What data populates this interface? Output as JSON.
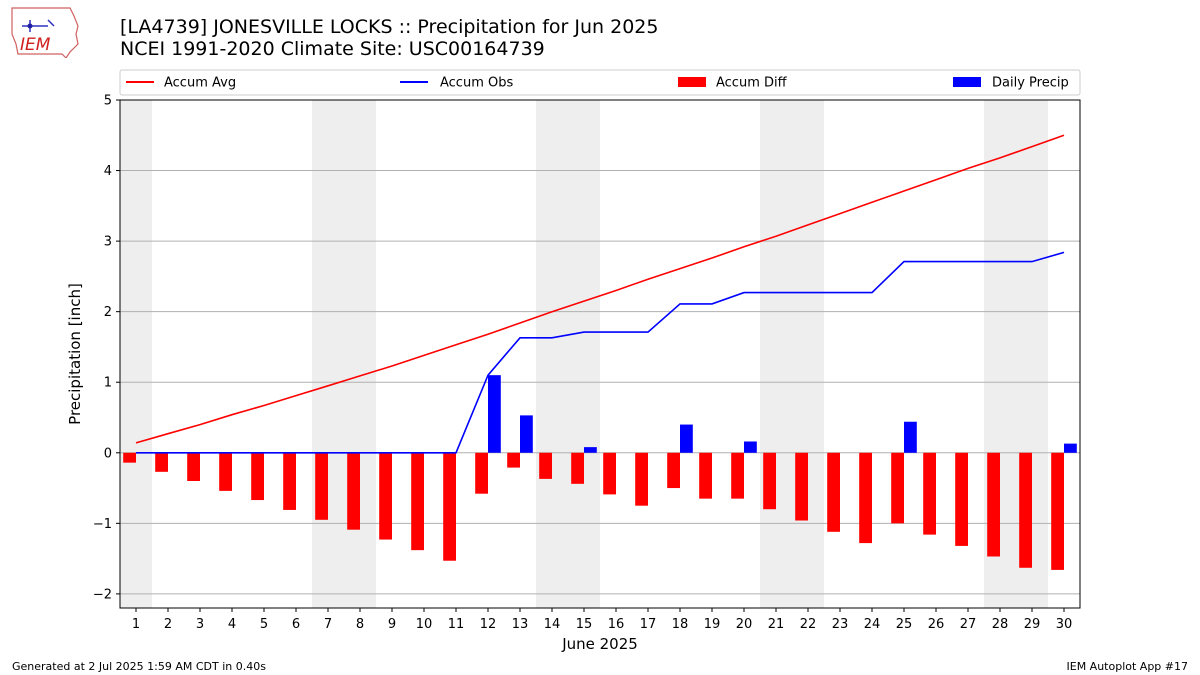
{
  "header": {
    "title_line1": "[LA4739] JONESVILLE LOCKS :: Precipitation for Jun 2025",
    "title_line2": "NCEI 1991-2020 Climate Site: USC00164739",
    "logo_text": "IEM"
  },
  "footer": {
    "left": "Generated at 2 Jul 2025 1:59 AM CDT in 0.40s",
    "right": "IEM Autoplot App #17"
  },
  "colors": {
    "avg": "#ff0000",
    "obs": "#0000ff",
    "diff": "#ff0000",
    "daily": "#0000ff",
    "weekend_shade": "#eeeeee",
    "grid": "#b0b0b0"
  },
  "chart_data": {
    "type": "bar",
    "xlabel": "June 2025",
    "ylabel": "Precipitation [inch]",
    "ylim": [
      -2.2,
      5
    ],
    "yticks": [
      -2,
      -1,
      0,
      1,
      2,
      3,
      4,
      5
    ],
    "ytick_labels": [
      "−2",
      "−1",
      "0",
      "1",
      "2",
      "3",
      "4",
      "5"
    ],
    "x": [
      1,
      2,
      3,
      4,
      5,
      6,
      7,
      8,
      9,
      10,
      11,
      12,
      13,
      14,
      15,
      16,
      17,
      18,
      19,
      20,
      21,
      22,
      23,
      24,
      25,
      26,
      27,
      28,
      29,
      30
    ],
    "grid": "horizontal",
    "legend_position": "top",
    "shaded_days": [
      [
        1,
        1
      ],
      [
        7,
        8
      ],
      [
        14,
        15
      ],
      [
        21,
        22
      ],
      [
        28,
        29
      ]
    ],
    "series": [
      {
        "name": "Accum Avg",
        "kind": "line",
        "values": [
          0.14,
          0.27,
          0.4,
          0.54,
          0.67,
          0.81,
          0.95,
          1.09,
          1.23,
          1.38,
          1.53,
          1.68,
          1.84,
          2.0,
          2.15,
          2.3,
          2.46,
          2.61,
          2.76,
          2.92,
          3.07,
          3.23,
          3.39,
          3.55,
          3.71,
          3.87,
          4.03,
          4.18,
          4.34,
          4.5
        ]
      },
      {
        "name": "Accum Obs",
        "kind": "line",
        "values": [
          0,
          0,
          0,
          0,
          0,
          0,
          0,
          0,
          0,
          0,
          0,
          1.1,
          1.63,
          1.63,
          1.71,
          1.71,
          1.71,
          2.11,
          2.11,
          2.27,
          2.27,
          2.27,
          2.27,
          2.27,
          2.71,
          2.71,
          2.71,
          2.71,
          2.71,
          2.84
        ]
      },
      {
        "name": "Accum Diff",
        "kind": "bar",
        "values": [
          -0.14,
          -0.27,
          -0.4,
          -0.54,
          -0.67,
          -0.81,
          -0.95,
          -1.09,
          -1.23,
          -1.38,
          -1.53,
          -0.58,
          -0.21,
          -0.37,
          -0.44,
          -0.59,
          -0.75,
          -0.5,
          -0.65,
          -0.65,
          -0.8,
          -0.96,
          -1.12,
          -1.28,
          -1.0,
          -1.16,
          -1.32,
          -1.47,
          -1.63,
          -1.66
        ]
      },
      {
        "name": "Daily Precip",
        "kind": "bar",
        "values": [
          0,
          0,
          0,
          0,
          0,
          0,
          0,
          0,
          0,
          0,
          0,
          1.1,
          0.53,
          0,
          0.08,
          0,
          0,
          0.4,
          0,
          0.16,
          0,
          0,
          0,
          0,
          0.44,
          0,
          0,
          0,
          0,
          0.13
        ]
      }
    ]
  }
}
